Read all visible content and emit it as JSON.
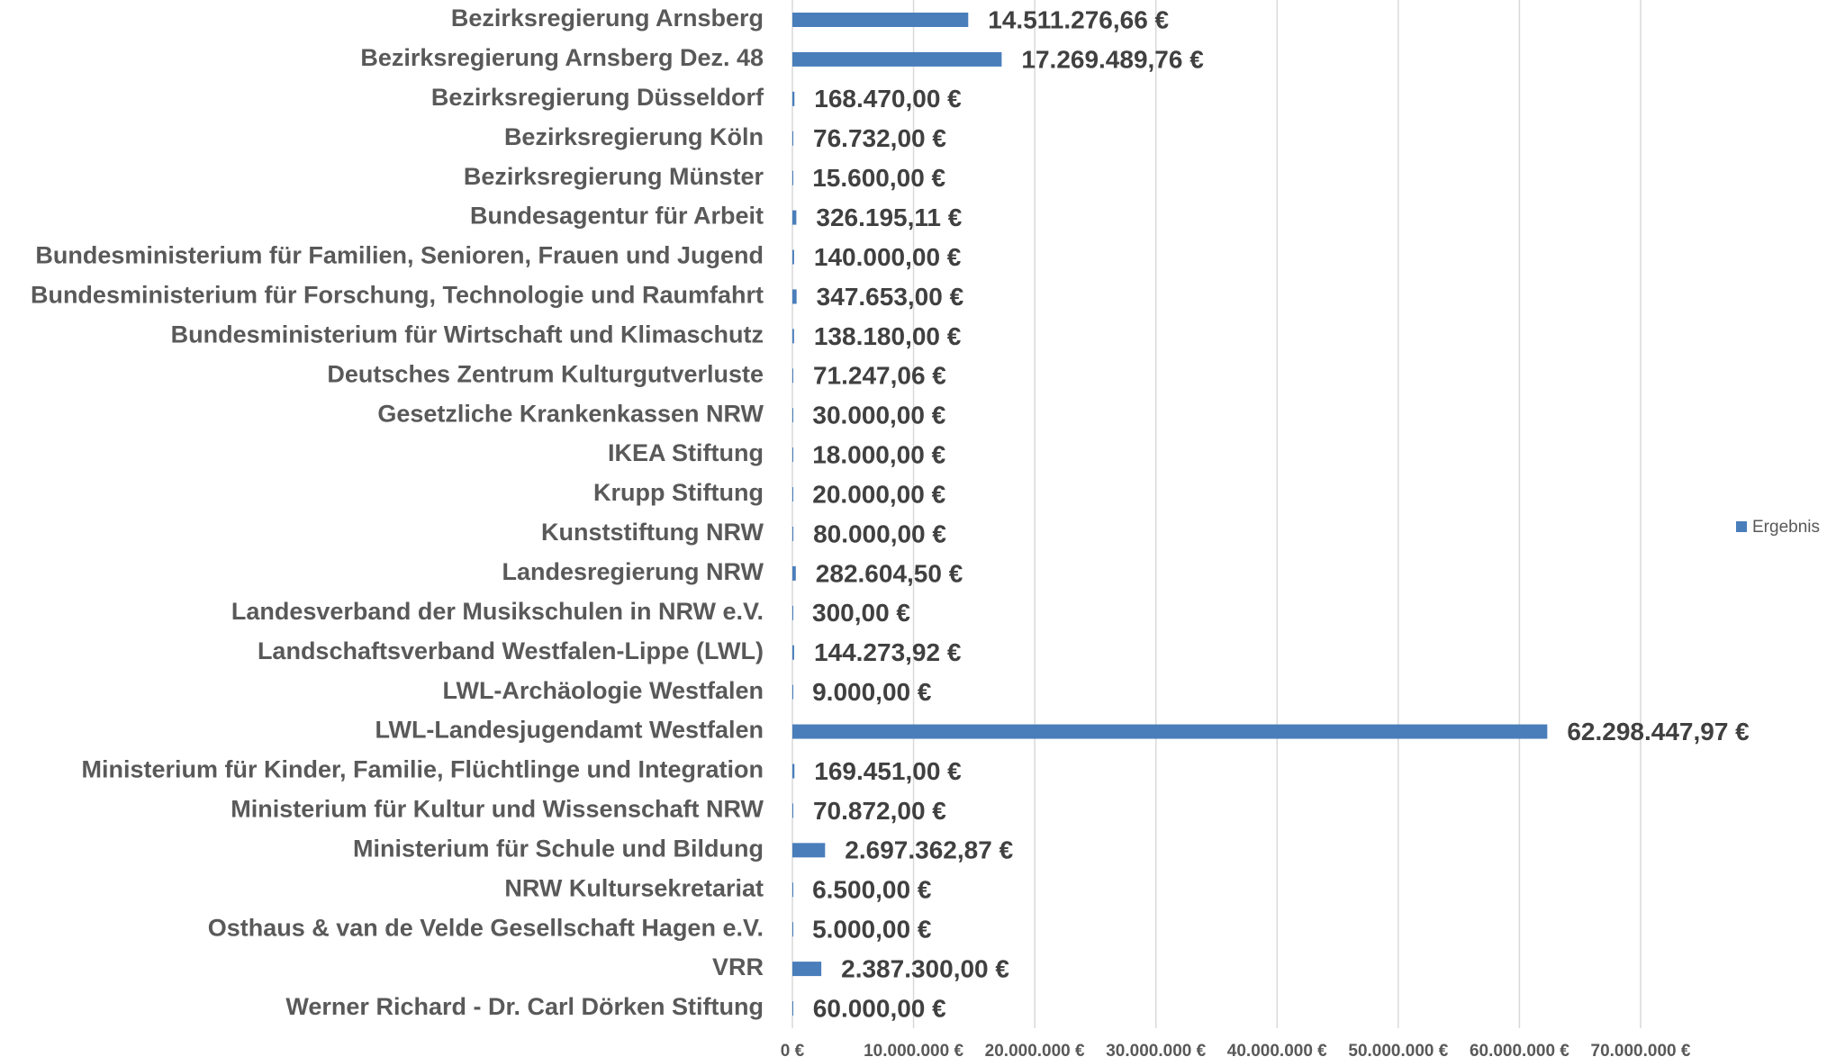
{
  "chart_data": {
    "type": "barh",
    "categories": [
      "Bezirksregierung Arnsberg",
      "Bezirksregierung Arnsberg Dez. 48",
      "Bezirksregierung Düsseldorf",
      "Bezirksregierung Köln",
      "Bezirksregierung Münster",
      "Bundesagentur für Arbeit",
      "Bundesministerium für Familien, Senioren, Frauen und Jugend",
      "Bundesministerium für Forschung, Technologie und Raumfahrt",
      "Bundesministerium für Wirtschaft und Klimaschutz",
      "Deutsches Zentrum Kulturgutverluste",
      "Gesetzliche Krankenkassen NRW",
      "IKEA Stiftung",
      "Krupp Stiftung",
      "Kunststiftung NRW",
      "Landesregierung NRW",
      "Landesverband der Musikschulen in NRW e.V.",
      "Landschaftsverband Westfalen-Lippe (LWL)",
      "LWL-Archäologie Westfalen",
      "LWL-Landesjugendamt Westfalen",
      "Ministerium für Kinder, Familie, Flüchtlinge und Integration",
      "Ministerium für Kultur und Wissenschaft NRW",
      "Ministerium für Schule und Bildung",
      "NRW Kultursekretariat",
      "Osthaus  & van de Velde Gesellschaft Hagen e.V.",
      "VRR",
      "Werner Richard - Dr. Carl Dörken Stiftung"
    ],
    "series": [
      {
        "name": "Ergebnis",
        "color": "#4a7ebb",
        "values": [
          14511276.66,
          17269489.76,
          168470,
          76732,
          15600,
          326195.11,
          140000,
          347653,
          138180,
          71247.06,
          30000,
          18000,
          20000,
          80000,
          282604.5,
          300,
          144273.92,
          9000,
          62298447.97,
          169451,
          70872,
          2697362.87,
          6500,
          5000,
          2387300,
          60000
        ],
        "value_labels": [
          "14.511.276,66 €",
          "17.269.489,76 €",
          "168.470,00 €",
          "76.732,00 €",
          "15.600,00 €",
          "326.195,11 €",
          "140.000,00 €",
          "347.653,00 €",
          "138.180,00 €",
          "71.247,06 €",
          "30.000,00 €",
          "18.000,00 €",
          "20.000,00 €",
          "80.000,00 €",
          "282.604,50 €",
          "300,00 €",
          "144.273,92 €",
          "9.000,00 €",
          "62.298.447,97 €",
          "169.451,00 €",
          "70.872,00 €",
          "2.697.362,87 €",
          "6.500,00 €",
          "5.000,00 €",
          "2.387.300,00 €",
          "60.000,00 €"
        ]
      }
    ],
    "xlim": [
      0,
      70000000
    ],
    "xticks": [
      {
        "value": 0,
        "label": "0 €"
      },
      {
        "value": 10000000,
        "label": "10.000.000 €"
      },
      {
        "value": 20000000,
        "label": "20.000.000 €"
      },
      {
        "value": 30000000,
        "label": "30.000.000 €"
      },
      {
        "value": 40000000,
        "label": "40.000.000 €"
      },
      {
        "value": 50000000,
        "label": "50.000.000 €"
      },
      {
        "value": 60000000,
        "label": "60.000.000 €"
      },
      {
        "value": 70000000,
        "label": "70.000.000 €"
      }
    ],
    "grid": true,
    "legend": "right"
  }
}
